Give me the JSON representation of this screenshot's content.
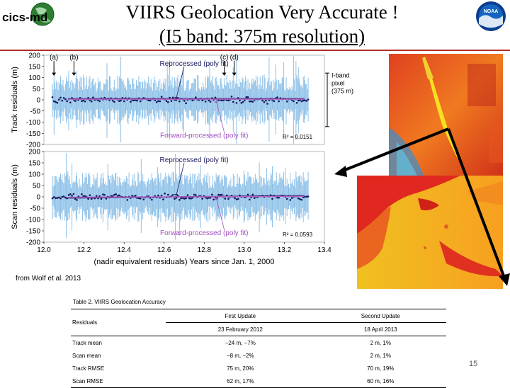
{
  "header": {
    "logo_text": "cics-md",
    "noaa_text": "NOAA",
    "title_line1": "VIIRS Geolocation Very Accurate !",
    "title_line2": "(I5 band: 375m resolution)"
  },
  "chart_data": [
    {
      "type": "scatter",
      "ylabel": "Track residuals (m)",
      "ylim": [
        -200,
        200
      ],
      "yticks": [
        "200",
        "150",
        "100",
        "50",
        "0",
        "-50",
        "-100",
        "-150",
        "-200"
      ],
      "xlim": [
        12.0,
        13.4
      ],
      "annotations": [
        "(a)",
        "(b)",
        "(c)",
        "(d)"
      ],
      "annotation_x": [
        12.05,
        12.15,
        12.9,
        12.95
      ],
      "label_top": "Reprocessed (poly fit)",
      "label_bottom": "Forward-processed (poly fit)",
      "r2": "R² = 0.0151",
      "side_label": [
        "I-band",
        "pixel",
        "(375 m)"
      ],
      "side_band": [
        -120,
        120
      ],
      "series": [
        {
          "name": "Reprocessed (poly fit)",
          "color": "#1a1a5e",
          "y": [
            5,
            5
          ]
        },
        {
          "name": "Forward-processed (poly fit)",
          "color": "#b060c0",
          "y": [
            3,
            3
          ]
        }
      ],
      "colors": {
        "noise": "#8ec1e8",
        "points": "#14145a",
        "fit": "#a050c0"
      }
    },
    {
      "type": "scatter",
      "ylabel": "Scan residuals (m)",
      "ylim": [
        -200,
        200
      ],
      "yticks": [
        "200",
        "150",
        "100",
        "50",
        "0",
        "-50",
        "-100",
        "-150",
        "-200"
      ],
      "xlim": [
        12.0,
        13.4
      ],
      "xticks": [
        "12.0",
        "12.2",
        "12.4",
        "12.6",
        "12.8",
        "13.0",
        "13.2",
        "13.4"
      ],
      "xlabel": "(nadir equivalent residuals)  Years since Jan. 1, 2000",
      "label_top": "Reprocessed (poly fit)",
      "label_bottom": "Forward-processed (poly fit)",
      "r2": "R² = 0.0593",
      "series": [
        {
          "name": "Reprocessed (poly fit)",
          "color": "#1a1a5e",
          "y": [
            -5,
            5
          ]
        },
        {
          "name": "Forward-processed (poly fit)",
          "color": "#b060c0",
          "y": [
            -2,
            2
          ]
        }
      ],
      "colors": {
        "noise": "#8ec1e8",
        "points": "#14145a",
        "fit": "#a050c0"
      }
    }
  ],
  "caption": "from Wolf et al. 2013",
  "table": {
    "caption": "Table 2. VIIRS Geolocation Accuracy",
    "row_header": "Residuals",
    "col1": "First Update",
    "col1_date": "23 February 2012",
    "col2": "Second Update",
    "col2_date": "18 April 2013",
    "rows": [
      {
        "label": "Track mean",
        "v1": "−24 m, −7%",
        "v2": "2 m, 1%"
      },
      {
        "label": "Scan mean",
        "v1": "−8 m, −2%",
        "v2": "2 m, 1%"
      },
      {
        "label": "Track RMSE",
        "v1": "75 m, 20%",
        "v2": "70 m, 19%"
      },
      {
        "label": "Scan RMSE",
        "v1": "62 m, 17%",
        "v2": "60 m, 16%"
      }
    ]
  },
  "page_number": "15"
}
